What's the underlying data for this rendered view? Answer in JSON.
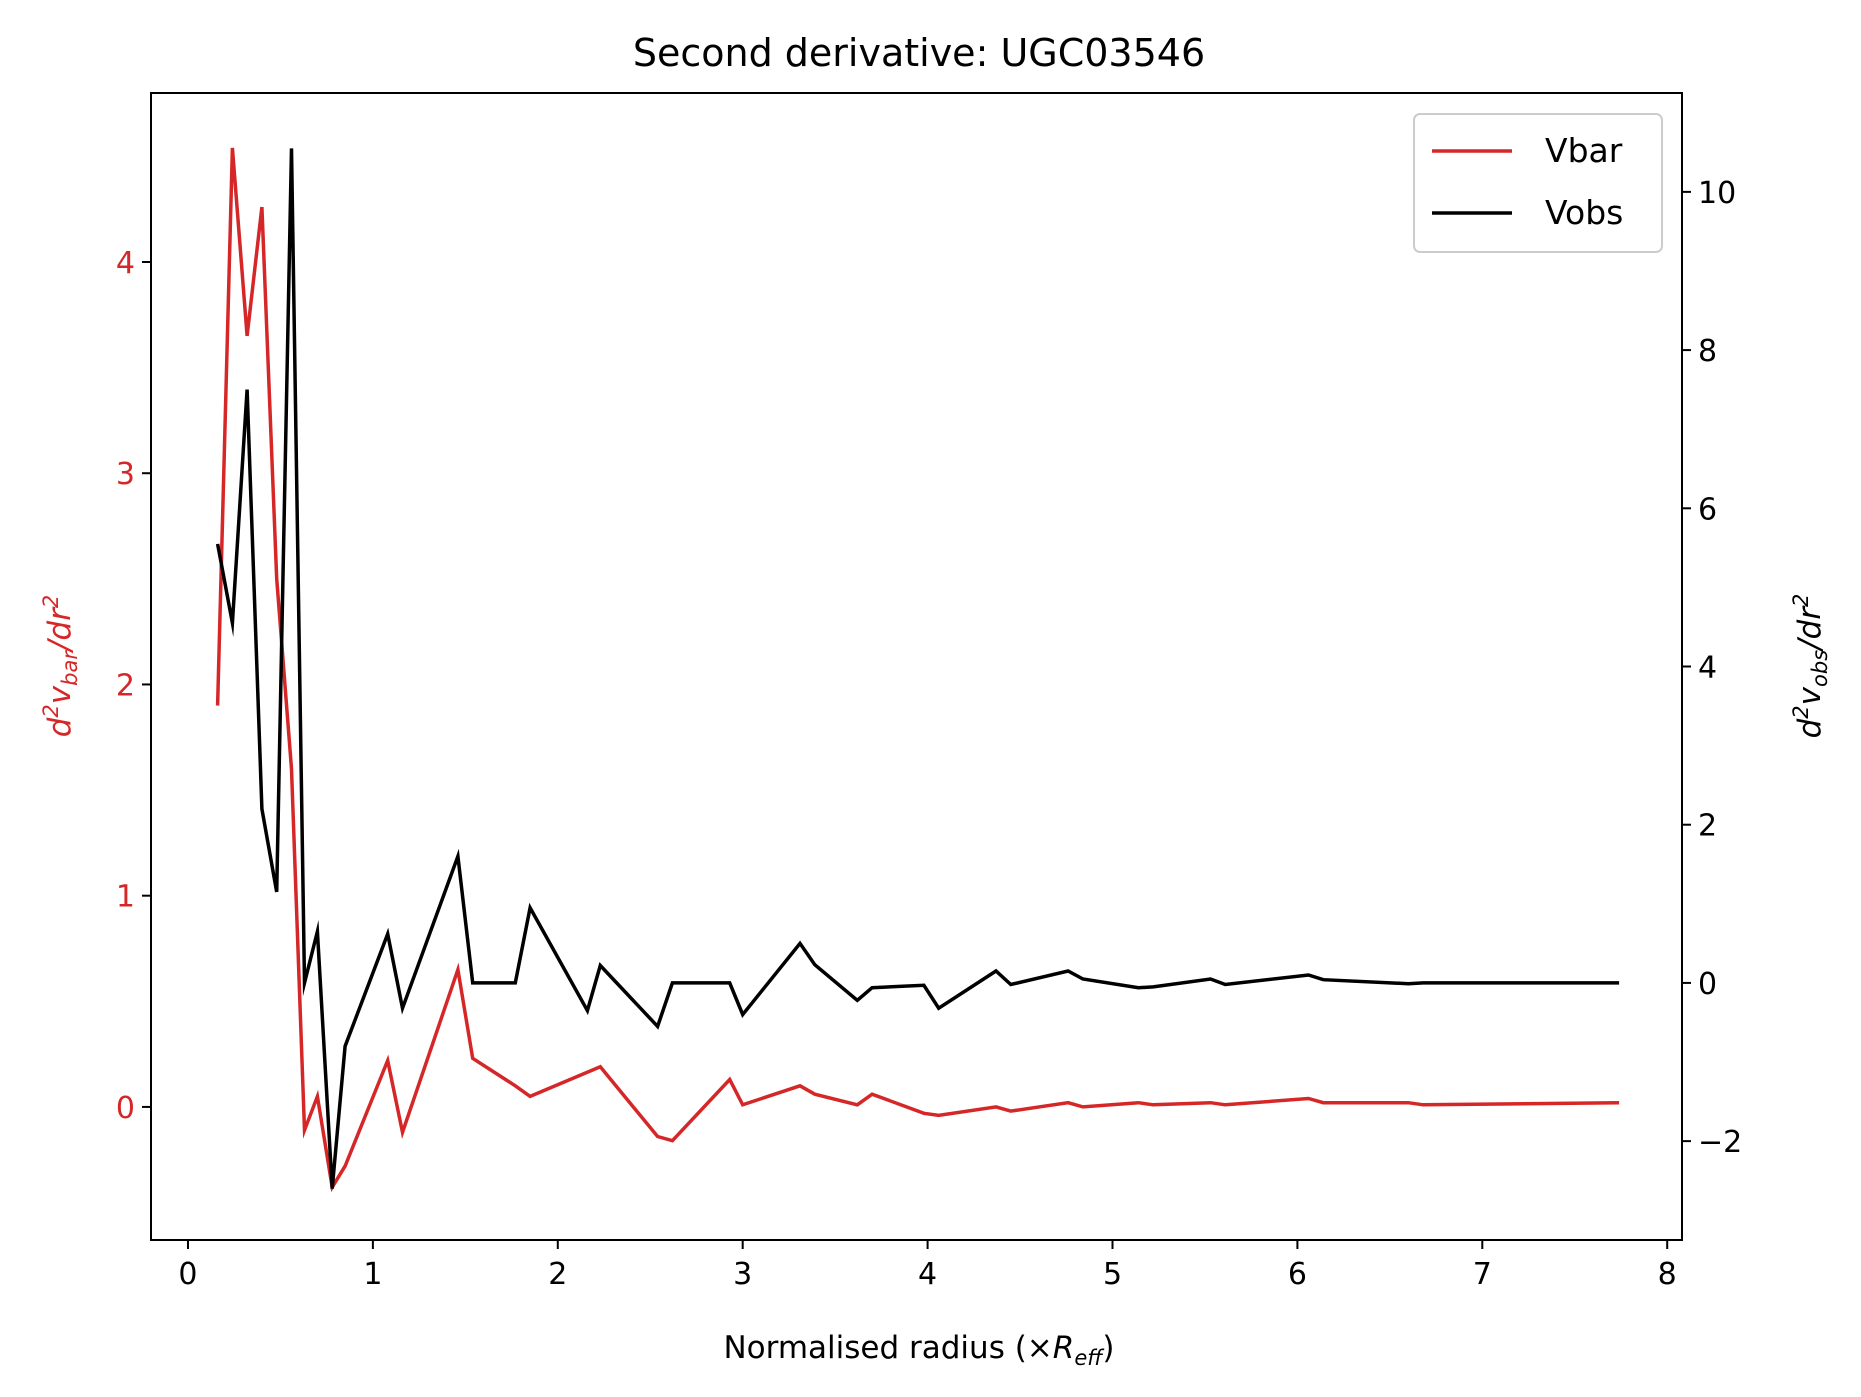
{
  "chart_data": {
    "type": "line",
    "title": "Second derivative: UGC03546",
    "xlabel": "Normalised radius (×R_eff)",
    "xlabel_parts": {
      "prefix": "Normalised radius (×",
      "symbol": "R",
      "sub": "eff",
      "suffix": ")"
    },
    "ylabel_left": "d²v_bar/dr²",
    "ylabel_left_parts": {
      "d": "d",
      "sup1": "2",
      "v": "v",
      "sub": "bar",
      "slash": "/dr",
      "sup2": "2"
    },
    "ylabel_right": "d²v_obs/dr²",
    "ylabel_right_parts": {
      "d": "d",
      "sup1": "2",
      "v": "v",
      "sub": "obs",
      "slash": "/dr",
      "sup2": "2"
    },
    "xlim": [
      -0.2,
      8.08
    ],
    "ylim_left": [
      -0.63,
      4.8
    ],
    "ylim_right": [
      -3.25,
      11.25
    ],
    "xticks": [
      0,
      1,
      2,
      3,
      4,
      5,
      6,
      7,
      8
    ],
    "xtick_labels": [
      "0",
      "1",
      "2",
      "3",
      "4",
      "5",
      "6",
      "7",
      "8"
    ],
    "yticks_left": [
      0,
      1,
      2,
      3,
      4
    ],
    "ytick_labels_left": [
      "0",
      "1",
      "2",
      "3",
      "4"
    ],
    "yticks_right": [
      -2,
      0,
      2,
      4,
      6,
      8,
      10
    ],
    "ytick_labels_right": [
      "−2",
      "0",
      "2",
      "4",
      "6",
      "8",
      "10"
    ],
    "left_axis_color": "#d62728",
    "right_axis_color": "#000000",
    "grid": false,
    "legend_position": "top-right",
    "series": [
      {
        "name": "Vbar",
        "axis": "left",
        "color": "#d62728",
        "x": [
          0.16,
          0.24,
          0.32,
          0.4,
          0.48,
          0.56,
          0.63,
          0.7,
          0.78,
          0.85,
          1.08,
          1.16,
          1.46,
          1.54,
          1.77,
          1.85,
          2.23,
          2.54,
          2.62,
          2.93,
          3.0,
          3.31,
          3.39,
          3.62,
          3.7,
          3.98,
          4.06,
          4.37,
          4.45,
          4.76,
          4.84,
          5.14,
          5.22,
          5.53,
          5.61,
          6.06,
          6.14,
          6.6,
          6.68,
          7.74
        ],
        "values": [
          1.9,
          4.54,
          3.65,
          4.26,
          2.5,
          1.6,
          -0.11,
          0.05,
          -0.38,
          -0.28,
          0.22,
          -0.12,
          0.65,
          0.23,
          0.1,
          0.05,
          0.19,
          -0.14,
          -0.16,
          0.13,
          0.01,
          0.1,
          0.06,
          0.01,
          0.06,
          -0.03,
          -0.04,
          0.0,
          -0.02,
          0.02,
          0.0,
          0.02,
          0.01,
          0.02,
          0.01,
          0.04,
          0.02,
          0.02,
          0.01,
          0.02
        ]
      },
      {
        "name": "Vobs",
        "axis": "right",
        "color": "#000000",
        "x": [
          0.16,
          0.24,
          0.32,
          0.4,
          0.48,
          0.56,
          0.63,
          0.7,
          0.78,
          0.85,
          1.08,
          1.16,
          1.46,
          1.54,
          1.77,
          1.85,
          2.16,
          2.23,
          2.54,
          2.62,
          2.93,
          3.0,
          3.31,
          3.39,
          3.62,
          3.7,
          3.98,
          4.06,
          4.37,
          4.45,
          4.76,
          4.84,
          5.14,
          5.22,
          5.53,
          5.61,
          6.06,
          6.14,
          6.6,
          6.68,
          7.74
        ],
        "values": [
          5.55,
          4.55,
          7.5,
          2.2,
          1.15,
          10.55,
          0.0,
          0.65,
          -2.6,
          -0.8,
          0.62,
          -0.32,
          1.6,
          0.0,
          0.0,
          0.95,
          -0.35,
          0.22,
          -0.55,
          0.0,
          0.0,
          -0.4,
          0.5,
          0.23,
          -0.22,
          -0.06,
          -0.03,
          -0.32,
          0.15,
          -0.02,
          0.15,
          0.05,
          -0.06,
          -0.05,
          0.05,
          -0.02,
          0.1,
          0.04,
          -0.01,
          0.0,
          0.0
        ]
      }
    ]
  }
}
